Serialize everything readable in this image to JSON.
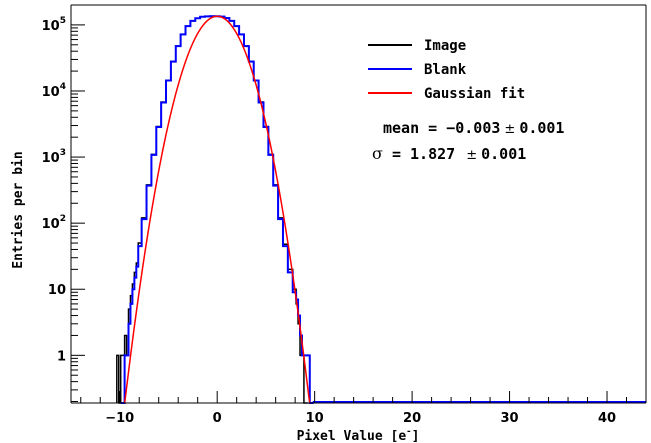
{
  "chart_data": {
    "type": "line",
    "xlabel_text": "Pixel Value [e",
    "xlabel_sup": "-",
    "xlabel_close": "]",
    "ylabel": "Entries per bin",
    "yscale": "log",
    "xlim": [
      -15,
      44
    ],
    "ylim": [
      0.19,
      200000
    ],
    "x_ticks": [
      -10,
      0,
      10,
      20,
      30,
      40
    ],
    "x_tick_labels": [
      "−10",
      "0",
      "10",
      "20",
      "30",
      "40"
    ],
    "y_ticks": [
      {
        "value": 1,
        "label": "1"
      },
      {
        "value": 10,
        "label": "10"
      },
      {
        "base": "10",
        "exp": "2",
        "value": 100
      },
      {
        "base": "10",
        "exp": "3",
        "value": 1000
      },
      {
        "base": "10",
        "exp": "4",
        "value": 10000
      },
      {
        "base": "10",
        "exp": "5",
        "value": 100000
      }
    ],
    "grid": false,
    "legend_position": "top-right",
    "series": [
      {
        "name": "Image",
        "color": "#000000",
        "kind": "histogram",
        "x": [
          -10.2,
          -10.0,
          -9.8,
          -9.6,
          -9.4,
          -9.2,
          -9.0,
          -8.8,
          -8.6,
          -8.4,
          -8.2,
          -8.0,
          -7.5,
          -7.0,
          -6.5,
          -6.0,
          -5.5,
          -5.0,
          -4.5,
          -4.0,
          -3.5,
          -3.0,
          -2.5,
          -2.0,
          -1.5,
          -1.0,
          -0.5,
          0.0,
          0.5,
          1.0,
          1.5,
          2.0,
          2.5,
          3.0,
          3.5,
          4.0,
          4.5,
          5.0,
          5.5,
          6.0,
          6.5,
          7.0,
          7.5,
          8.0,
          8.2,
          8.4,
          8.6,
          8.8,
          9.0,
          9.2
        ],
        "y": [
          1,
          0.1,
          1,
          1,
          2,
          1,
          5,
          8,
          12,
          18,
          25,
          50,
          120,
          380,
          1100,
          2900,
          6800,
          14500,
          28000,
          48000,
          72000,
          96000,
          115000,
          126000,
          133000,
          135000,
          135500,
          135000,
          133500,
          127000,
          115000,
          96000,
          72000,
          48000,
          28000,
          14500,
          6800,
          2900,
          1100,
          380,
          120,
          48,
          20,
          10,
          6,
          3,
          1,
          1,
          0.1,
          0.1
        ]
      },
      {
        "name": "Blank",
        "color": "#0000ff",
        "kind": "histogram",
        "x": [
          -9.8,
          -9.6,
          -9.4,
          -9.2,
          -9.0,
          -8.8,
          -8.6,
          -8.4,
          -8.2,
          -8.0,
          -7.5,
          -7.0,
          -6.5,
          -6.0,
          -5.5,
          -5.0,
          -4.5,
          -4.0,
          -3.5,
          -3.0,
          -2.5,
          -2.0,
          -1.5,
          -1.0,
          -0.5,
          0.0,
          0.5,
          1.0,
          1.5,
          2.0,
          2.5,
          3.0,
          3.5,
          4.0,
          4.5,
          5.0,
          5.5,
          6.0,
          6.5,
          7.0,
          7.5,
          8.0,
          8.2,
          8.4,
          8.6,
          8.8,
          9.0,
          9.2,
          9.4,
          9.6,
          9.8
        ],
        "y": [
          0.1,
          0.1,
          1,
          1,
          3,
          6,
          10,
          15,
          22,
          45,
          115,
          370,
          1080,
          2850,
          6700,
          14400,
          27800,
          47800,
          71800,
          95800,
          114800,
          125800,
          132800,
          134800,
          135300,
          135000,
          133300,
          126800,
          114800,
          95800,
          71800,
          47800,
          27800,
          14400,
          6700,
          2850,
          1080,
          370,
          115,
          45,
          18,
          9,
          7,
          4,
          2,
          1,
          1,
          1,
          1,
          0.1,
          0.1
        ]
      },
      {
        "name": "Gaussian fit",
        "color": "#ff0000",
        "kind": "function",
        "amplitude": 135000,
        "mean": -0.003,
        "sigma": 1.827,
        "x_range": [
          -9.5,
          9.5
        ]
      }
    ],
    "legend": [
      {
        "label": "Image",
        "color": "#000000"
      },
      {
        "label": "Blank",
        "color": "#0000ff"
      },
      {
        "label": "Gaussian fit",
        "color": "#ff0000"
      }
    ],
    "stats": {
      "mean_label": "mean = ",
      "mean_value": "−0.003",
      "pm": "±",
      "mean_err": "0.001",
      "sigma_symbol": "σ",
      "sigma_eq": " = 1.827 ",
      "sigma_err": "0.001"
    }
  }
}
